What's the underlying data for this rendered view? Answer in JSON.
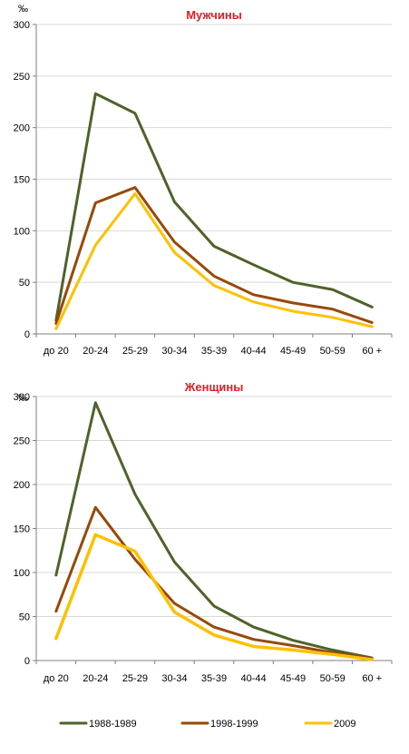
{
  "chart_data": [
    {
      "type": "line",
      "title": "Мужчины",
      "ylabel": "‰",
      "xlabel": "",
      "categories": [
        "до 20",
        "20-24",
        "25-29",
        "30-34",
        "35-39",
        "40-44",
        "45-49",
        "50-59",
        "60 +"
      ],
      "yticks": [
        "0",
        "50",
        "100",
        "150",
        "200",
        "250",
        "300"
      ],
      "ylim": [
        0,
        300
      ],
      "grid": true,
      "series": [
        {
          "name": "1988-1989",
          "color": "#4f6228",
          "values": [
            13,
            233,
            214,
            128,
            85,
            67,
            50,
            43,
            26
          ]
        },
        {
          "name": "1998-1999",
          "color": "#984807",
          "values": [
            10,
            127,
            142,
            89,
            56,
            38,
            30,
            24,
            11
          ]
        },
        {
          "name": "2009",
          "color": "#ffc000",
          "values": [
            5,
            86,
            136,
            79,
            47,
            31,
            22,
            16,
            7
          ]
        }
      ]
    },
    {
      "type": "line",
      "title": "Женщины",
      "ylabel": "‰",
      "xlabel": "",
      "categories": [
        "до 20",
        "20-24",
        "25-29",
        "30-34",
        "35-39",
        "40-44",
        "45-49",
        "50-59",
        "60 +"
      ],
      "yticks": [
        "0",
        "50",
        "100",
        "150",
        "200",
        "250",
        "300"
      ],
      "ylim": [
        0,
        300
      ],
      "grid": true,
      "series": [
        {
          "name": "1988-1989",
          "color": "#4f6228",
          "values": [
            97,
            293,
            189,
            112,
            62,
            38,
            23,
            12,
            3
          ]
        },
        {
          "name": "1998-1999",
          "color": "#984807",
          "values": [
            56,
            174,
            115,
            65,
            38,
            24,
            17,
            9,
            2
          ]
        },
        {
          "name": "2009",
          "color": "#ffc000",
          "values": [
            25,
            143,
            124,
            55,
            29,
            16,
            12,
            7,
            1
          ]
        }
      ]
    }
  ],
  "legend": {
    "placement": "bottom",
    "items": [
      {
        "label": "1988-1989",
        "color": "#4f6228"
      },
      {
        "label": "1998-1999",
        "color": "#984807"
      },
      {
        "label": "2009",
        "color": "#ffc000"
      }
    ]
  }
}
